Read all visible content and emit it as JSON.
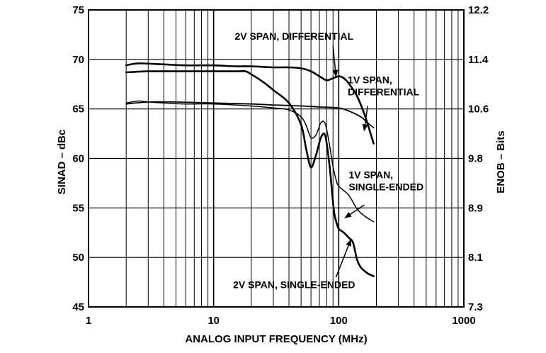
{
  "chart_data": {
    "type": "line",
    "title": "",
    "xlabel": "ANALOG INPUT FREQUENCY (MHz)",
    "ylabel": "SINAD – dBc",
    "y2label": "ENOB – Bits",
    "xscale": "log",
    "xlim": [
      1,
      1000
    ],
    "ylim": [
      45,
      75
    ],
    "grid": true,
    "x_ticks": [
      1,
      10,
      100,
      1000
    ],
    "x_tick_labels": [
      "1",
      "10",
      "100",
      "1000"
    ],
    "y_ticks": [
      45,
      50,
      55,
      60,
      65,
      70,
      75
    ],
    "y_tick_labels": [
      "45",
      "50",
      "55",
      "60",
      "65",
      "70",
      "75"
    ],
    "y2_ticks": [
      45,
      50,
      55,
      60,
      65,
      70,
      75
    ],
    "y2_tick_labels": [
      "7.3",
      "8.1",
      "8.9",
      "9.8",
      "10.6",
      "11.4",
      "12.2"
    ],
    "series": [
      {
        "name": "2V SPAN, DIFFERENTIAL",
        "stroke_width": 2.6,
        "x": [
          2,
          2.5,
          4,
          6,
          10,
          15,
          20,
          30,
          40,
          50,
          60,
          70,
          80,
          90,
          100,
          110,
          120,
          140,
          160,
          180,
          190
        ],
        "y": [
          69.4,
          69.6,
          69.5,
          69.4,
          69.4,
          69.3,
          69.3,
          69.2,
          69.2,
          69.1,
          68.8,
          68.3,
          67.9,
          68.1,
          68.3,
          68.1,
          67.6,
          66.3,
          64.5,
          62.5,
          61.5
        ]
      },
      {
        "name": "1V SPAN, DIFFERENTIAL",
        "stroke_width": 1.8,
        "x": [
          2,
          3,
          5,
          10,
          20,
          30,
          50,
          70,
          100,
          120,
          150,
          170,
          190
        ],
        "y": [
          65.5,
          65.7,
          65.7,
          65.6,
          65.5,
          65.4,
          65.3,
          65.2,
          65.1,
          64.8,
          64.2,
          63.6,
          63.1
        ]
      },
      {
        "name": "1V SPAN, SINGLE-ENDED",
        "stroke_width": 1.5,
        "x": [
          2,
          2.5,
          3,
          4,
          6,
          10,
          20,
          30,
          40,
          50,
          55,
          60,
          66,
          72,
          78,
          84,
          90,
          95,
          100,
          120,
          140,
          160,
          190
        ],
        "y": [
          65.6,
          65.8,
          65.7,
          65.6,
          65.5,
          65.5,
          65.3,
          65.1,
          64.9,
          64.2,
          63.3,
          62.1,
          62.4,
          63.6,
          63.5,
          61.5,
          59.2,
          57.9,
          57.2,
          56.3,
          54.9,
          54.2,
          53.6
        ]
      },
      {
        "name": "2V SPAN, SINGLE-ENDED",
        "stroke_width": 2.6,
        "x": [
          2,
          3,
          5,
          10,
          15,
          18,
          20,
          25,
          30,
          40,
          50,
          55,
          60,
          66,
          72,
          78,
          84,
          88,
          92,
          96,
          100,
          110,
          120,
          130,
          140,
          150,
          170,
          190
        ],
        "y": [
          68.7,
          68.8,
          68.8,
          68.8,
          68.8,
          68.8,
          68.5,
          67.7,
          66.9,
          65.6,
          63.4,
          60.9,
          59.1,
          60.4,
          62.1,
          62.3,
          59.5,
          56.9,
          54.5,
          53.5,
          52.9,
          52.5,
          52.0,
          51.5,
          49.8,
          49.0,
          48.4,
          48.1
        ]
      }
    ],
    "annotations": [
      {
        "lines": [
          "2V SPAN, DIFFERENTIAL"
        ],
        "series": 0,
        "anchor": "middle",
        "text_at": [
          44,
          72.0
        ],
        "arrow_from": [
          90,
          71.4
        ],
        "arrow_to": [
          95.0,
          68.3
        ]
      },
      {
        "lines": [
          "1V SPAN,",
          "DIFFERENTIAL"
        ],
        "series": 1,
        "anchor": "start",
        "text_at": [
          118,
          67.6
        ],
        "arrow_from": [
          170,
          65.3
        ],
        "arrow_to": [
          160,
          62.8
        ]
      },
      {
        "lines": [
          "1V SPAN,",
          "SINGLE-ENDED"
        ],
        "series": 2,
        "anchor": "start",
        "text_at": [
          120,
          58.0
        ],
        "arrow_from": [
          160,
          55.3
        ],
        "arrow_to": [
          112,
          54.0
        ]
      },
      {
        "lines": [
          "2V SPAN, SINGLE-ENDED"
        ],
        "series": 3,
        "anchor": "middle",
        "text_at": [
          44,
          46.9
        ],
        "arrow_from": [
          95,
          48.0
        ],
        "arrow_to": [
          125,
          51.8
        ]
      }
    ]
  }
}
